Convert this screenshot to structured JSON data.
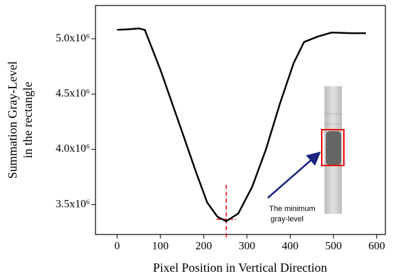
{
  "chart_data": {
    "type": "line",
    "x_label": "Pixel Position in Vertical Direction",
    "y_label": [
      "Summation Gray-Level",
      "in the rectangle"
    ],
    "annotation": [
      "The minimum",
      "gray-level"
    ],
    "x": [
      0,
      25,
      50,
      64,
      100,
      150,
      180,
      208,
      232,
      252,
      280,
      312,
      344,
      376,
      408,
      432,
      464,
      496,
      540,
      575
    ],
    "series": [
      {
        "name": "Summation Gray-Level",
        "color": "#000000",
        "values": [
          5080000,
          5085000,
          5093000,
          5080000,
          4720000,
          4160000,
          3820000,
          3520000,
          3390000,
          3350000,
          3420000,
          3660000,
          4000000,
          4410000,
          4780000,
          4970000,
          5020000,
          5056000,
          5050000,
          5050000
        ]
      }
    ],
    "xlim": [
      -50,
      620
    ],
    "xticks": [
      0,
      100,
      200,
      300,
      400,
      500,
      600
    ],
    "ylim": [
      3230000,
      5300000
    ],
    "yticks": [
      {
        "value": 3500000,
        "label": "3.5x10⁶"
      },
      {
        "value": 4000000,
        "label": "4.0x10⁶"
      },
      {
        "value": 4500000,
        "label": "4.5x10⁶"
      },
      {
        "value": 5000000,
        "label": "5.0x10⁶"
      }
    ],
    "grid": false
  }
}
